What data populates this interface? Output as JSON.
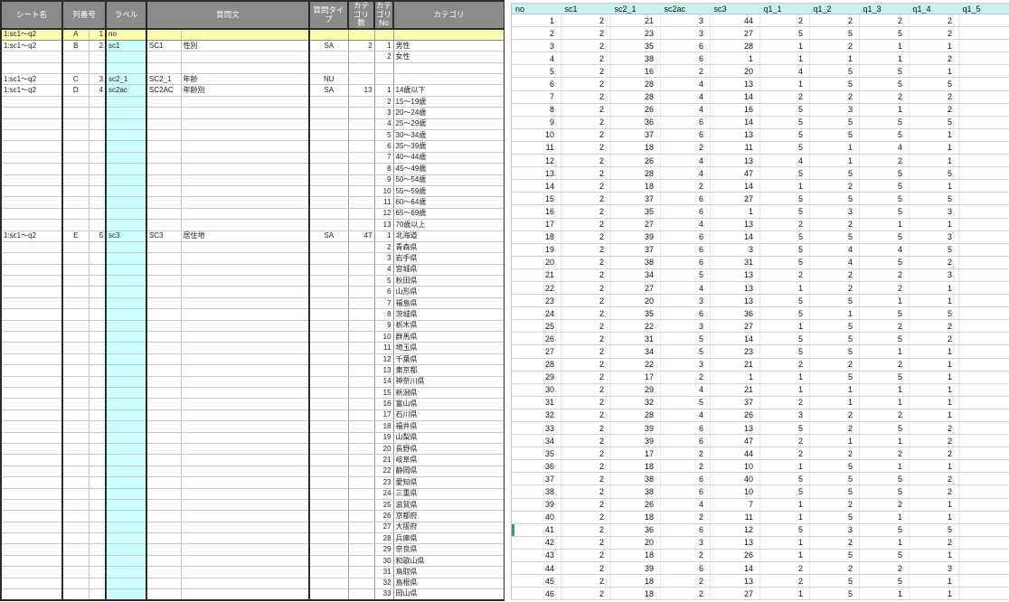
{
  "colors": {
    "definition_header_bg": "#8b8b8b",
    "definition_header_text": "#ffffff",
    "label_column_bg": "#ccffff",
    "highlight_row_bg": "#ffffb3",
    "data_header_bg": "#c9f0f0",
    "selection_marker_green": "#2e9e5b"
  },
  "left_table": {
    "headers": {
      "sheet_name": "シート名",
      "column_number": "列番号",
      "label": "ラベル",
      "question_text": "質問文",
      "question_type": "質問タイプ",
      "category_count": "カテゴリ数",
      "category_no": "カテゴリNo",
      "category": "カテゴリ"
    },
    "rows": [
      {
        "sh": "1:sc1～q2",
        "cl": "A",
        "cn": "1",
        "lb": "no",
        "y": 1,
        "s": 1
      },
      {
        "sh": "1:sc1～q2",
        "cl": "B",
        "cn": "2",
        "lb": "sc1",
        "qc": "SC1",
        "qt": "性別",
        "ty": "SA",
        "cc": "2",
        "no": "1",
        "ca": "男性",
        "s": 1
      },
      {
        "no": "2",
        "ca": "女性"
      },
      {},
      {
        "sh": "1:sc1～q2",
        "cl": "C",
        "cn": "3",
        "lb": "sc2_1",
        "qc": "SC2_1",
        "qt": "年齢",
        "ty": "NU",
        "s": 1
      },
      {
        "sh": "1:sc1～q2",
        "cl": "D",
        "cn": "4",
        "lb": "sc2ac",
        "qc": "SC2AC",
        "qt": "年齢別",
        "ty": "SA",
        "cc": "13",
        "no": "1",
        "ca": "14歳以下",
        "s": 1
      },
      {
        "no": "2",
        "ca": "15～19歳"
      },
      {
        "no": "3",
        "ca": "20～24歳"
      },
      {
        "no": "4",
        "ca": "25～29歳"
      },
      {
        "no": "5",
        "ca": "30～34歳"
      },
      {
        "no": "6",
        "ca": "35～39歳"
      },
      {
        "no": "7",
        "ca": "40～44歳"
      },
      {
        "no": "8",
        "ca": "45～49歳"
      },
      {
        "no": "9",
        "ca": "50～54歳"
      },
      {
        "no": "10",
        "ca": "55～59歳"
      },
      {
        "no": "11",
        "ca": "60～64歳"
      },
      {
        "no": "12",
        "ca": "65～69歳"
      },
      {
        "no": "13",
        "ca": "70歳以上"
      },
      {
        "sh": "1:sc1～q2",
        "cl": "E",
        "cn": "5",
        "lb": "sc3",
        "qc": "SC3",
        "qt": "居住地",
        "ty": "SA",
        "cc": "47",
        "no": "1",
        "ca": "北海道",
        "s": 1
      },
      {
        "no": "2",
        "ca": "青森県"
      },
      {
        "no": "3",
        "ca": "岩手県"
      },
      {
        "no": "4",
        "ca": "宮城県"
      },
      {
        "no": "5",
        "ca": "秋田県"
      },
      {
        "no": "6",
        "ca": "山形県"
      },
      {
        "no": "7",
        "ca": "福島県"
      },
      {
        "no": "8",
        "ca": "茨城県"
      },
      {
        "no": "9",
        "ca": "栃木県"
      },
      {
        "no": "10",
        "ca": "群馬県"
      },
      {
        "no": "11",
        "ca": "埼玉県"
      },
      {
        "no": "12",
        "ca": "千葉県"
      },
      {
        "no": "13",
        "ca": "東京都"
      },
      {
        "no": "14",
        "ca": "神奈川県"
      },
      {
        "no": "15",
        "ca": "新潟県"
      },
      {
        "no": "16",
        "ca": "富山県"
      },
      {
        "no": "17",
        "ca": "石川県"
      },
      {
        "no": "18",
        "ca": "福井県"
      },
      {
        "no": "19",
        "ca": "山梨県"
      },
      {
        "no": "20",
        "ca": "長野県"
      },
      {
        "no": "21",
        "ca": "岐阜県"
      },
      {
        "no": "22",
        "ca": "静岡県"
      },
      {
        "no": "23",
        "ca": "愛知県"
      },
      {
        "no": "24",
        "ca": "三重県"
      },
      {
        "no": "25",
        "ca": "滋賀県"
      },
      {
        "no": "26",
        "ca": "京都府"
      },
      {
        "no": "27",
        "ca": "大阪府"
      },
      {
        "no": "28",
        "ca": "兵庫県"
      },
      {
        "no": "29",
        "ca": "奈良県"
      },
      {
        "no": "30",
        "ca": "和歌山県"
      },
      {
        "no": "31",
        "ca": "鳥取県"
      },
      {
        "no": "32",
        "ca": "島根県"
      },
      {
        "no": "33",
        "ca": "岡山県"
      }
    ]
  },
  "right_table": {
    "columns": [
      "no",
      "sc1",
      "sc2_1",
      "sc2ac",
      "sc3",
      "q1_1",
      "q1_2",
      "q1_3",
      "q1_4",
      "q1_5"
    ],
    "selected_row_no": 41,
    "rows": [
      [
        1,
        2,
        21,
        3,
        44,
        2,
        2,
        2,
        2,
        ""
      ],
      [
        2,
        2,
        23,
        3,
        27,
        5,
        5,
        5,
        2,
        ""
      ],
      [
        3,
        2,
        35,
        6,
        28,
        1,
        2,
        1,
        1,
        ""
      ],
      [
        4,
        2,
        38,
        6,
        1,
        1,
        1,
        1,
        2,
        ""
      ],
      [
        5,
        2,
        16,
        2,
        20,
        4,
        5,
        5,
        1,
        ""
      ],
      [
        6,
        2,
        28,
        4,
        13,
        1,
        5,
        5,
        5,
        ""
      ],
      [
        7,
        2,
        28,
        4,
        14,
        2,
        2,
        2,
        2,
        ""
      ],
      [
        8,
        2,
        26,
        4,
        16,
        5,
        3,
        1,
        2,
        ""
      ],
      [
        9,
        2,
        36,
        6,
        14,
        5,
        5,
        5,
        5,
        ""
      ],
      [
        10,
        2,
        37,
        6,
        13,
        5,
        5,
        5,
        1,
        ""
      ],
      [
        11,
        2,
        18,
        2,
        11,
        5,
        1,
        4,
        1,
        ""
      ],
      [
        12,
        2,
        26,
        4,
        13,
        4,
        1,
        2,
        1,
        ""
      ],
      [
        13,
        2,
        28,
        4,
        47,
        5,
        5,
        5,
        5,
        ""
      ],
      [
        14,
        2,
        18,
        2,
        14,
        1,
        2,
        5,
        1,
        ""
      ],
      [
        15,
        2,
        37,
        6,
        27,
        5,
        5,
        5,
        5,
        ""
      ],
      [
        16,
        2,
        35,
        6,
        1,
        5,
        3,
        5,
        3,
        ""
      ],
      [
        17,
        2,
        27,
        4,
        13,
        2,
        2,
        1,
        1,
        ""
      ],
      [
        18,
        2,
        39,
        6,
        14,
        5,
        5,
        5,
        3,
        ""
      ],
      [
        19,
        2,
        37,
        6,
        3,
        5,
        4,
        4,
        5,
        ""
      ],
      [
        20,
        2,
        38,
        6,
        31,
        5,
        4,
        5,
        2,
        ""
      ],
      [
        21,
        2,
        34,
        5,
        13,
        2,
        2,
        2,
        3,
        ""
      ],
      [
        22,
        2,
        27,
        4,
        13,
        1,
        2,
        2,
        1,
        ""
      ],
      [
        23,
        2,
        20,
        3,
        13,
        5,
        5,
        1,
        1,
        ""
      ],
      [
        24,
        2,
        35,
        6,
        36,
        5,
        1,
        5,
        5,
        ""
      ],
      [
        25,
        2,
        22,
        3,
        27,
        1,
        5,
        2,
        2,
        ""
      ],
      [
        26,
        2,
        31,
        5,
        14,
        5,
        5,
        5,
        2,
        ""
      ],
      [
        27,
        2,
        34,
        5,
        23,
        5,
        5,
        1,
        1,
        ""
      ],
      [
        28,
        2,
        22,
        3,
        21,
        2,
        2,
        2,
        1,
        ""
      ],
      [
        29,
        2,
        17,
        2,
        1,
        1,
        5,
        5,
        1,
        ""
      ],
      [
        30,
        2,
        29,
        4,
        21,
        1,
        1,
        1,
        1,
        ""
      ],
      [
        31,
        2,
        32,
        5,
        37,
        2,
        1,
        1,
        1,
        ""
      ],
      [
        32,
        2,
        28,
        4,
        26,
        3,
        2,
        2,
        1,
        ""
      ],
      [
        33,
        2,
        39,
        6,
        13,
        5,
        2,
        5,
        2,
        ""
      ],
      [
        34,
        2,
        39,
        6,
        47,
        2,
        1,
        1,
        2,
        ""
      ],
      [
        35,
        2,
        17,
        2,
        44,
        2,
        2,
        2,
        2,
        ""
      ],
      [
        36,
        2,
        18,
        2,
        10,
        1,
        5,
        1,
        1,
        ""
      ],
      [
        37,
        2,
        38,
        6,
        40,
        5,
        5,
        5,
        2,
        ""
      ],
      [
        38,
        2,
        38,
        6,
        10,
        5,
        5,
        5,
        2,
        ""
      ],
      [
        39,
        2,
        26,
        4,
        7,
        1,
        2,
        2,
        1,
        ""
      ],
      [
        40,
        2,
        18,
        2,
        11,
        1,
        5,
        1,
        1,
        ""
      ],
      [
        41,
        2,
        36,
        6,
        12,
        5,
        3,
        5,
        5,
        ""
      ],
      [
        42,
        2,
        20,
        3,
        13,
        1,
        2,
        1,
        2,
        ""
      ],
      [
        43,
        2,
        18,
        2,
        26,
        1,
        5,
        5,
        1,
        ""
      ],
      [
        44,
        2,
        39,
        6,
        14,
        2,
        2,
        2,
        3,
        ""
      ],
      [
        45,
        2,
        18,
        2,
        13,
        2,
        5,
        5,
        1,
        ""
      ],
      [
        46,
        2,
        18,
        2,
        27,
        1,
        5,
        1,
        1,
        ""
      ]
    ]
  }
}
